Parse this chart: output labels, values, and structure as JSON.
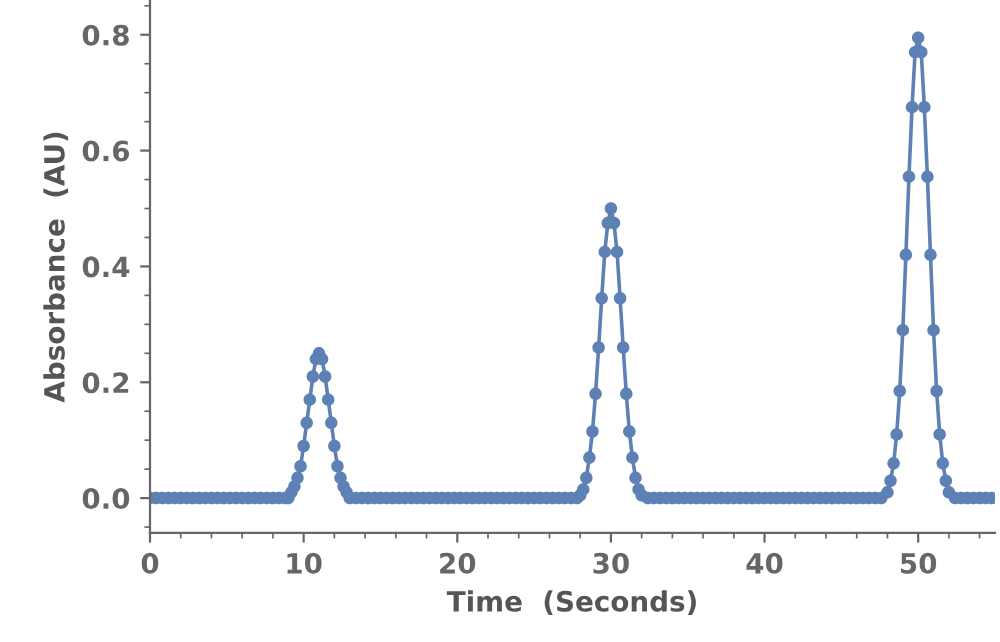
{
  "chart_data": {
    "type": "line",
    "xlabel": "Time  (Seconds)",
    "ylabel": "Absorbance  (AU)",
    "xlim": [
      0,
      55
    ],
    "ylim": [
      -0.06,
      0.86
    ],
    "xticks": [
      0,
      10,
      20,
      30,
      40,
      50
    ],
    "yticks": [
      {
        "value": 0,
        "label": "0.0"
      },
      {
        "value": 0.2,
        "label": "0.2"
      },
      {
        "value": 0.4,
        "label": "0.4"
      },
      {
        "value": 0.6,
        "label": "0.6"
      },
      {
        "value": 0.8,
        "label": "0.8"
      }
    ],
    "marker": "circle",
    "line_style": "solid",
    "grid": false,
    "legend": false,
    "series": [
      {
        "color": "#5e81b5",
        "x": [
          0,
          0.4,
          0.8,
          1.2,
          1.6,
          2,
          2.4,
          2.8,
          3.2,
          3.6,
          4,
          4.4,
          4.8,
          5.2,
          5.6,
          6,
          6.4,
          6.8,
          7.2,
          7.6,
          8,
          8.4,
          8.8,
          9,
          9.2,
          9.4,
          9.6,
          9.8,
          10,
          10.2,
          10.4,
          10.6,
          10.8,
          11,
          11.2,
          11.4,
          11.6,
          11.8,
          12,
          12.2,
          12.4,
          12.6,
          12.8,
          13,
          13.4,
          13.8,
          14.2,
          14.6,
          15,
          15.4,
          15.8,
          16.2,
          16.6,
          17,
          17.4,
          17.8,
          18.2,
          18.6,
          19,
          19.4,
          19.8,
          20.2,
          20.6,
          21,
          21.4,
          21.8,
          22.2,
          22.6,
          23,
          23.4,
          23.8,
          24.2,
          24.6,
          25,
          25.4,
          25.8,
          26.2,
          26.6,
          27,
          27.4,
          27.8,
          28,
          28.2,
          28.4,
          28.6,
          28.8,
          29,
          29.2,
          29.4,
          29.6,
          29.8,
          30,
          30.2,
          30.4,
          30.6,
          30.8,
          31,
          31.2,
          31.4,
          31.6,
          31.8,
          32,
          32.4,
          32.8,
          33.2,
          33.6,
          34,
          34.4,
          34.8,
          35.2,
          35.6,
          36,
          36.4,
          36.8,
          37.2,
          37.6,
          38,
          38.4,
          38.8,
          39.2,
          39.6,
          40,
          40.4,
          40.8,
          41.2,
          41.6,
          42,
          42.4,
          42.8,
          43.2,
          43.6,
          44,
          44.4,
          44.8,
          45.2,
          45.6,
          46,
          46.4,
          46.8,
          47.2,
          47.6,
          48,
          48.2,
          48.4,
          48.6,
          48.8,
          49,
          49.2,
          49.4,
          49.6,
          49.8,
          50,
          50.2,
          50.4,
          50.6,
          50.8,
          51,
          51.2,
          51.4,
          51.6,
          51.8,
          52,
          52.4,
          52.8,
          53.2,
          53.6,
          54,
          54.4,
          54.8
        ],
        "values": [
          0,
          0,
          0,
          0,
          0,
          0,
          0,
          0,
          0,
          0,
          0,
          0,
          0,
          0,
          0,
          0,
          0,
          0,
          0,
          0,
          0,
          0,
          0,
          0,
          0.01,
          0.02,
          0.035,
          0.055,
          0.09,
          0.13,
          0.17,
          0.21,
          0.24,
          0.25,
          0.24,
          0.21,
          0.17,
          0.13,
          0.09,
          0.055,
          0.035,
          0.02,
          0.01,
          0,
          0,
          0,
          0,
          0,
          0,
          0,
          0,
          0,
          0,
          0,
          0,
          0,
          0,
          0,
          0,
          0,
          0,
          0,
          0,
          0,
          0,
          0,
          0,
          0,
          0,
          0,
          0,
          0,
          0,
          0,
          0,
          0,
          0,
          0,
          0,
          0,
          0,
          0.005,
          0.015,
          0.035,
          0.07,
          0.115,
          0.18,
          0.26,
          0.345,
          0.425,
          0.475,
          0.5,
          0.475,
          0.425,
          0.345,
          0.26,
          0.18,
          0.115,
          0.07,
          0.035,
          0.015,
          0.005,
          0,
          0,
          0,
          0,
          0,
          0,
          0,
          0,
          0,
          0,
          0,
          0,
          0,
          0,
          0,
          0,
          0,
          0,
          0,
          0,
          0,
          0,
          0,
          0,
          0,
          0,
          0,
          0,
          0,
          0,
          0,
          0,
          0,
          0,
          0,
          0,
          0,
          0,
          0,
          0.01,
          0.03,
          0.06,
          0.11,
          0.185,
          0.29,
          0.42,
          0.555,
          0.675,
          0.77,
          0.795,
          0.77,
          0.675,
          0.555,
          0.42,
          0.29,
          0.185,
          0.11,
          0.06,
          0.03,
          0.01,
          0,
          0,
          0,
          0,
          0,
          0,
          0
        ]
      }
    ]
  }
}
